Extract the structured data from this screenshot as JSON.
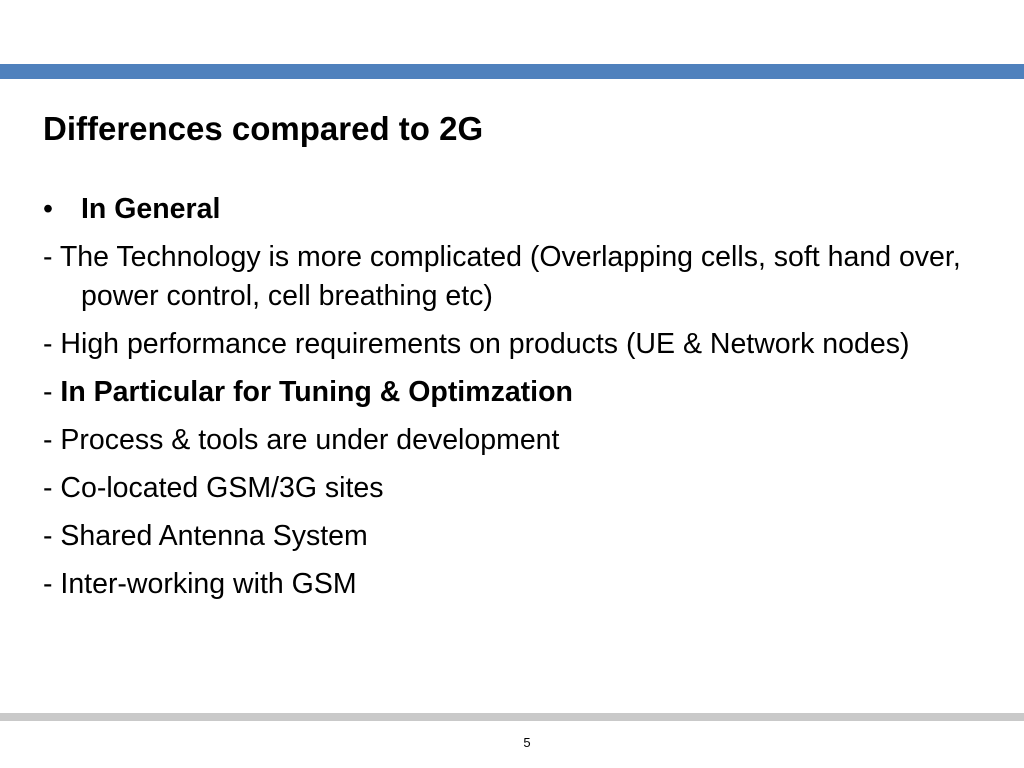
{
  "slide": {
    "title": "Differences compared to 2G",
    "bullet_symbol": "•",
    "heading_general": "In General",
    "item_technology": "- The Technology is more complicated (Overlapping cells, soft hand over, power control, cell breathing etc)",
    "item_performance": "- High performance requirements on products (UE & Network nodes)",
    "particular_dash": "- ",
    "heading_particular": "In Particular for Tuning & Optimzation",
    "item_process": "- Process & tools are under development",
    "item_colocated": "- Co-located GSM/3G sites",
    "item_antenna": "- Shared Antenna System",
    "item_interworking": "- Inter-working with GSM",
    "page_number": "5"
  },
  "colors": {
    "accent_bar": "#4f81bd",
    "footer_bar": "#c9c9c9"
  }
}
